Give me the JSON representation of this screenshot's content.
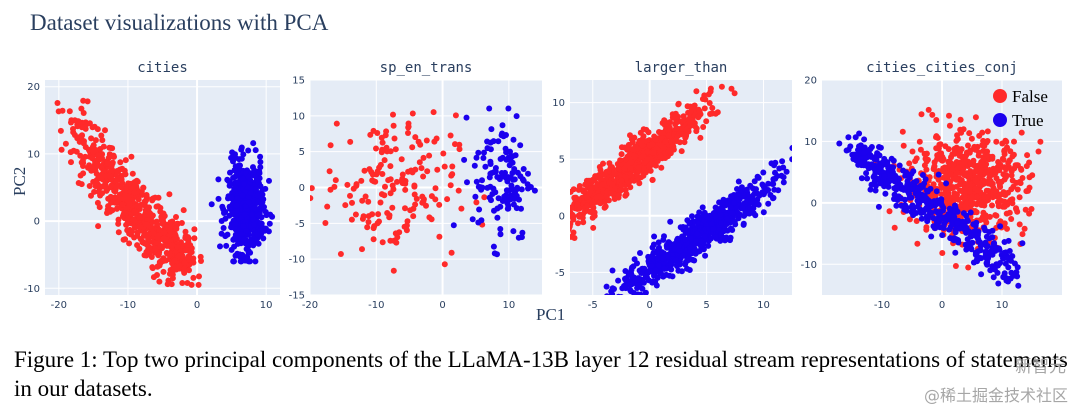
{
  "suptitle": "Dataset visualizations with PCA",
  "xlabel": "PC1",
  "ylabel": "PC2",
  "caption": "Figure 1: Top two principal components of the LLaMA-13B layer 12 residual stream representations of statements in our datasets.",
  "watermark": "新智元",
  "watermark2": "@稀土掘金技术社区",
  "colors": {
    "false": "#ff2a2a",
    "true": "#1b00ee",
    "bg": "#e5ecf6",
    "grid": "#ffffff"
  },
  "chart_data": [
    {
      "type": "scatter",
      "title": "cities",
      "xlim": [
        -22,
        12
      ],
      "ylim": [
        -11,
        21
      ],
      "xticks": [
        -20,
        -10,
        0,
        10
      ],
      "yticks": [
        -10,
        0,
        10,
        20
      ],
      "legend": [
        "False",
        "True"
      ],
      "series": [
        {
          "name": "False",
          "cluster": "cities_false",
          "n": 700
        },
        {
          "name": "True",
          "cluster": "cities_true",
          "n": 550
        }
      ]
    },
    {
      "type": "scatter",
      "title": "sp_en_trans",
      "xlim": [
        -20,
        15
      ],
      "ylim": [
        -15,
        15
      ],
      "xticks": [
        -20,
        -10,
        0,
        10
      ],
      "yticks": [
        -15,
        -10,
        -5,
        0,
        5,
        10,
        15
      ],
      "series": [
        {
          "name": "False",
          "cluster": "sp_false",
          "n": 170
        },
        {
          "name": "True",
          "cluster": "sp_true",
          "n": 130
        }
      ]
    },
    {
      "type": "scatter",
      "title": "larger_than",
      "xlim": [
        -7,
        12.5
      ],
      "ylim": [
        -7,
        12
      ],
      "xticks": [
        -5,
        0,
        5,
        10
      ],
      "yticks": [
        -5,
        0,
        5,
        10
      ],
      "series": [
        {
          "name": "False",
          "cluster": "lt_false",
          "n": 750
        },
        {
          "name": "True",
          "cluster": "lt_true",
          "n": 750
        }
      ]
    },
    {
      "type": "scatter",
      "title": "cities_cities_conj",
      "xlim": [
        -20,
        20
      ],
      "ylim": [
        -15,
        20
      ],
      "xticks": [
        -10,
        0,
        10
      ],
      "yticks": [
        -10,
        0,
        10,
        20
      ],
      "legend_position": "top-right",
      "series": [
        {
          "name": "False",
          "cluster": "cc_false",
          "n": 650
        },
        {
          "name": "True",
          "cluster": "cc_true",
          "n": 450
        }
      ]
    }
  ]
}
